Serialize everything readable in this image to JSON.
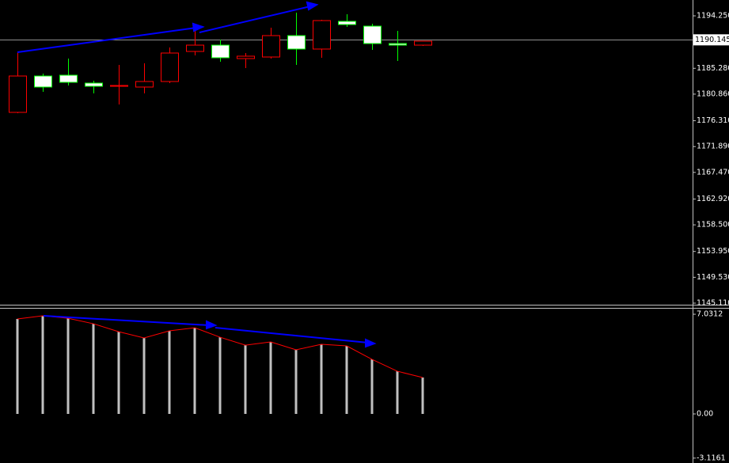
{
  "chart_data": [
    {
      "type": "candlestick",
      "open": [
        1177.74,
        1183.96,
        1184.1,
        1182.75,
        1182.2,
        1182.07,
        1183.02,
        1188.16,
        1189.24,
        1186.94,
        1187.21,
        1190.87,
        1188.57,
        1193.31,
        1192.49,
        1189.51,
        1189.24
      ],
      "high": [
        1188.03,
        1184.37,
        1186.94,
        1183.15,
        1185.86,
        1186.13,
        1188.84,
        1192.09,
        1190.19,
        1187.89,
        1192.22,
        1194.79,
        1193.58,
        1194.52,
        1192.9,
        1191.68,
        1189.92
      ],
      "low": [
        1177.6,
        1181.26,
        1182.34,
        1180.99,
        1179.09,
        1180.99,
        1182.75,
        1187.48,
        1186.4,
        1185.32,
        1186.94,
        1185.86,
        1187.08,
        1192.36,
        1188.43,
        1186.54,
        1189.11
      ],
      "close": [
        1183.96,
        1182.07,
        1182.88,
        1182.2,
        1182.34,
        1183.02,
        1187.89,
        1189.24,
        1187.08,
        1187.35,
        1190.87,
        1188.57,
        1193.44,
        1192.76,
        1189.51,
        1189.24,
        1189.92
      ],
      "up_color": "#ff0000",
      "down_color": "#00ff00",
      "down_fill": "#ffffff",
      "ylim": [
        1144.84,
        1196.96
      ],
      "yticks": [
        {
          "value": 1194.25,
          "label": "1194.250"
        },
        {
          "value": 1185.28,
          "label": "1185.280"
        },
        {
          "value": 1180.86,
          "label": "1180.860"
        },
        {
          "value": 1176.31,
          "label": "1176.310"
        },
        {
          "value": 1171.89,
          "label": "1171.890"
        },
        {
          "value": 1167.47,
          "label": "1167.470"
        },
        {
          "value": 1162.92,
          "label": "1162.920"
        },
        {
          "value": 1158.5,
          "label": "1158.500"
        },
        {
          "value": 1153.95,
          "label": "1153.950"
        },
        {
          "value": 1149.53,
          "label": "1149.530"
        },
        {
          "value": 1145.11,
          "label": "1145.110"
        }
      ],
      "current_price": {
        "value": 1190.145,
        "label": "1190.145"
      }
    },
    {
      "type": "bar",
      "values": [
        6.7,
        6.92,
        6.75,
        6.36,
        5.8,
        5.36,
        5.86,
        6.08,
        5.41,
        4.85,
        5.08,
        4.52,
        4.91,
        4.8,
        3.85,
        3.01,
        2.57
      ],
      "color": "#c0c0c0",
      "line": {
        "color": "#ff0000",
        "values": [
          6.7,
          6.92,
          6.75,
          6.36,
          5.8,
          5.36,
          5.86,
          6.08,
          5.41,
          4.85,
          5.08,
          4.52,
          4.91,
          4.8,
          3.85,
          3.01,
          2.57
        ]
      },
      "ylim": [
        -3.35,
        7.48
      ],
      "yticks": [
        7.0312,
        {
          "value": 0,
          "label": "0.00"
        },
        -3.1161
      ]
    }
  ]
}
